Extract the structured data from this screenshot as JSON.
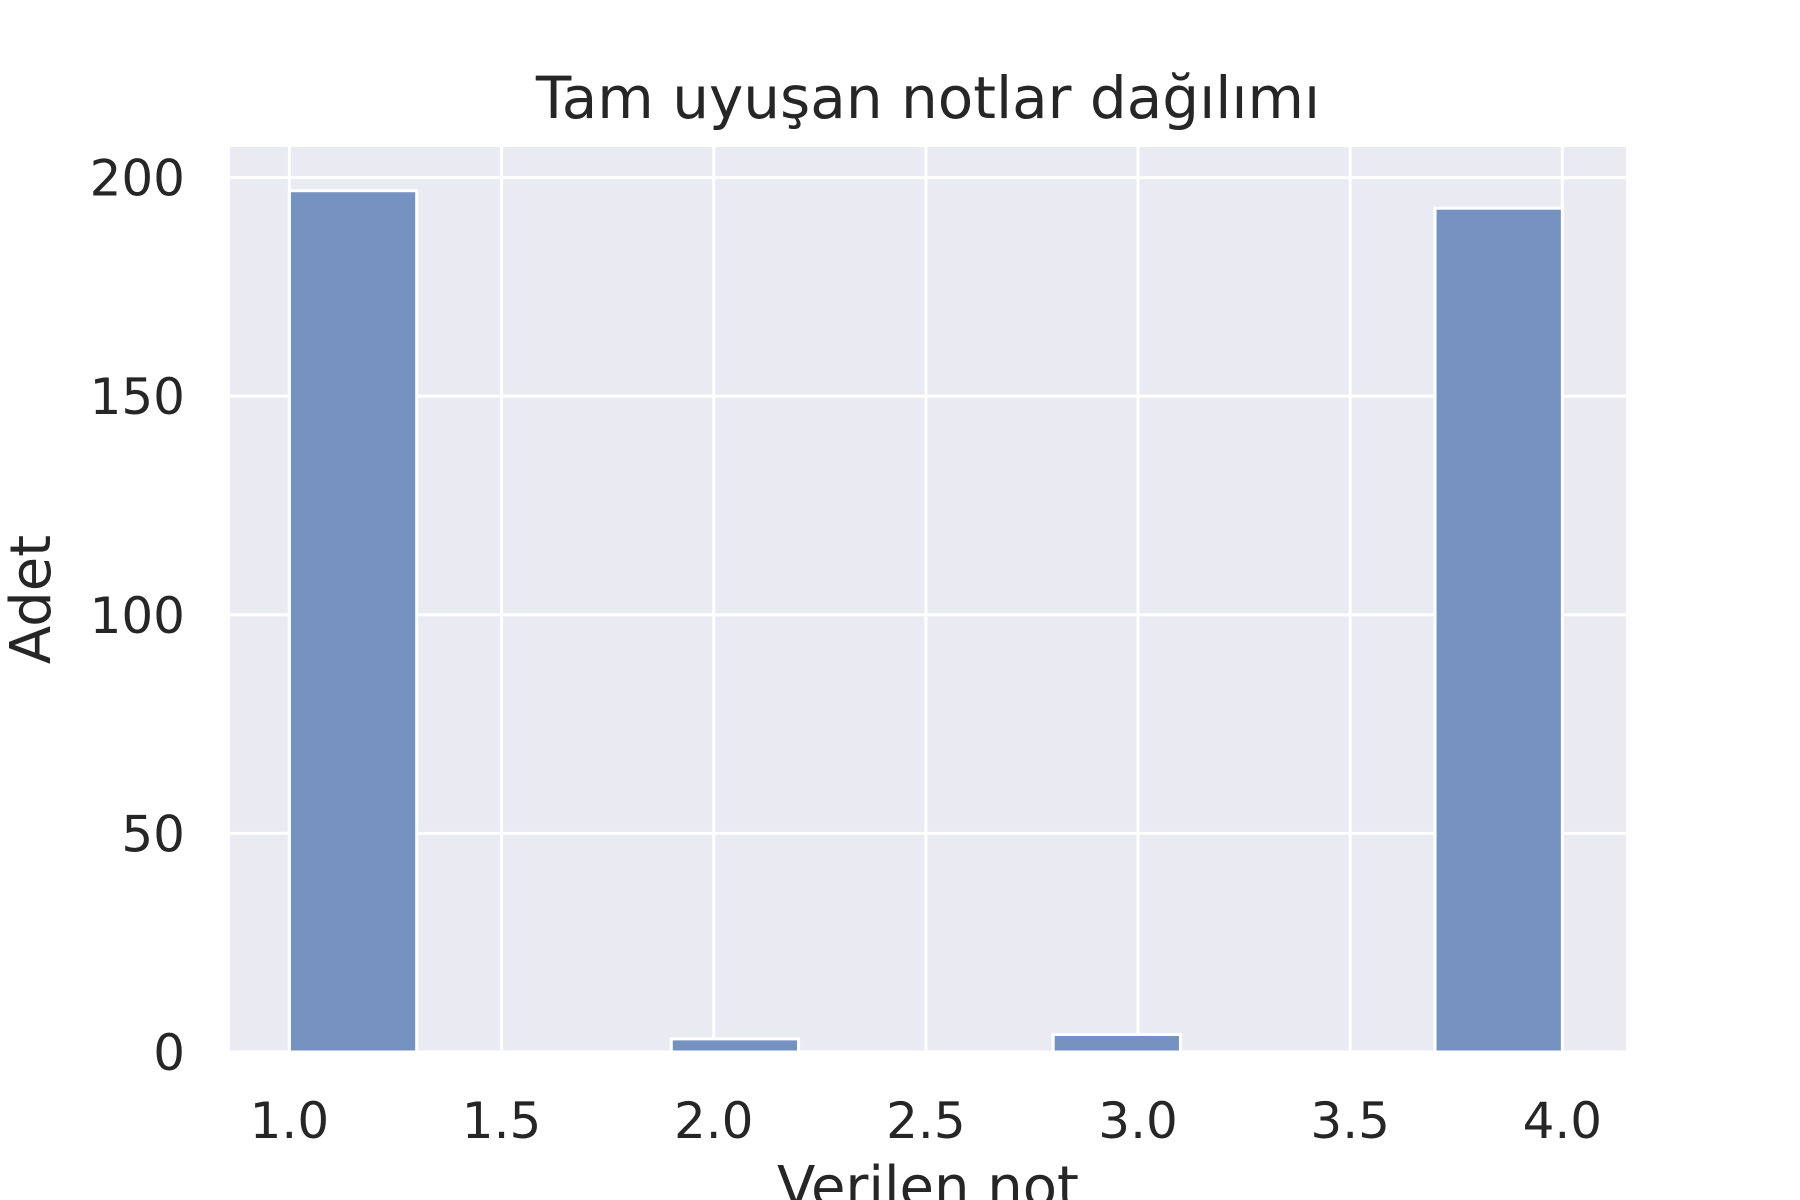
{
  "chart_data": {
    "type": "bar",
    "title": "Tam uyuşan notlar dağılımı",
    "xlabel": "Verilen not",
    "ylabel": "Adet",
    "xlim": [
      0.86,
      4.15
    ],
    "ylim": [
      0,
      207
    ],
    "x_ticks": [
      1.0,
      1.5,
      2.0,
      2.5,
      3.0,
      3.5,
      4.0
    ],
    "x_tick_labels": [
      "1.0",
      "1.5",
      "2.0",
      "2.5",
      "3.0",
      "3.5",
      "4.0"
    ],
    "y_ticks": [
      0,
      50,
      100,
      150,
      200
    ],
    "y_tick_labels": [
      "0",
      "50",
      "100",
      "150",
      "200"
    ],
    "bins": [
      {
        "x0": 1.0,
        "x1": 1.3,
        "value": 197
      },
      {
        "x0": 1.9,
        "x1": 2.2,
        "value": 3
      },
      {
        "x0": 2.8,
        "x1": 3.1,
        "value": 4
      },
      {
        "x0": 3.7,
        "x1": 4.0,
        "value": 193
      }
    ],
    "grid": true,
    "colors": {
      "bar": "#7592c0",
      "plot_background": "#eaeaf2",
      "grid": "#ffffff",
      "text": "#262626"
    }
  }
}
